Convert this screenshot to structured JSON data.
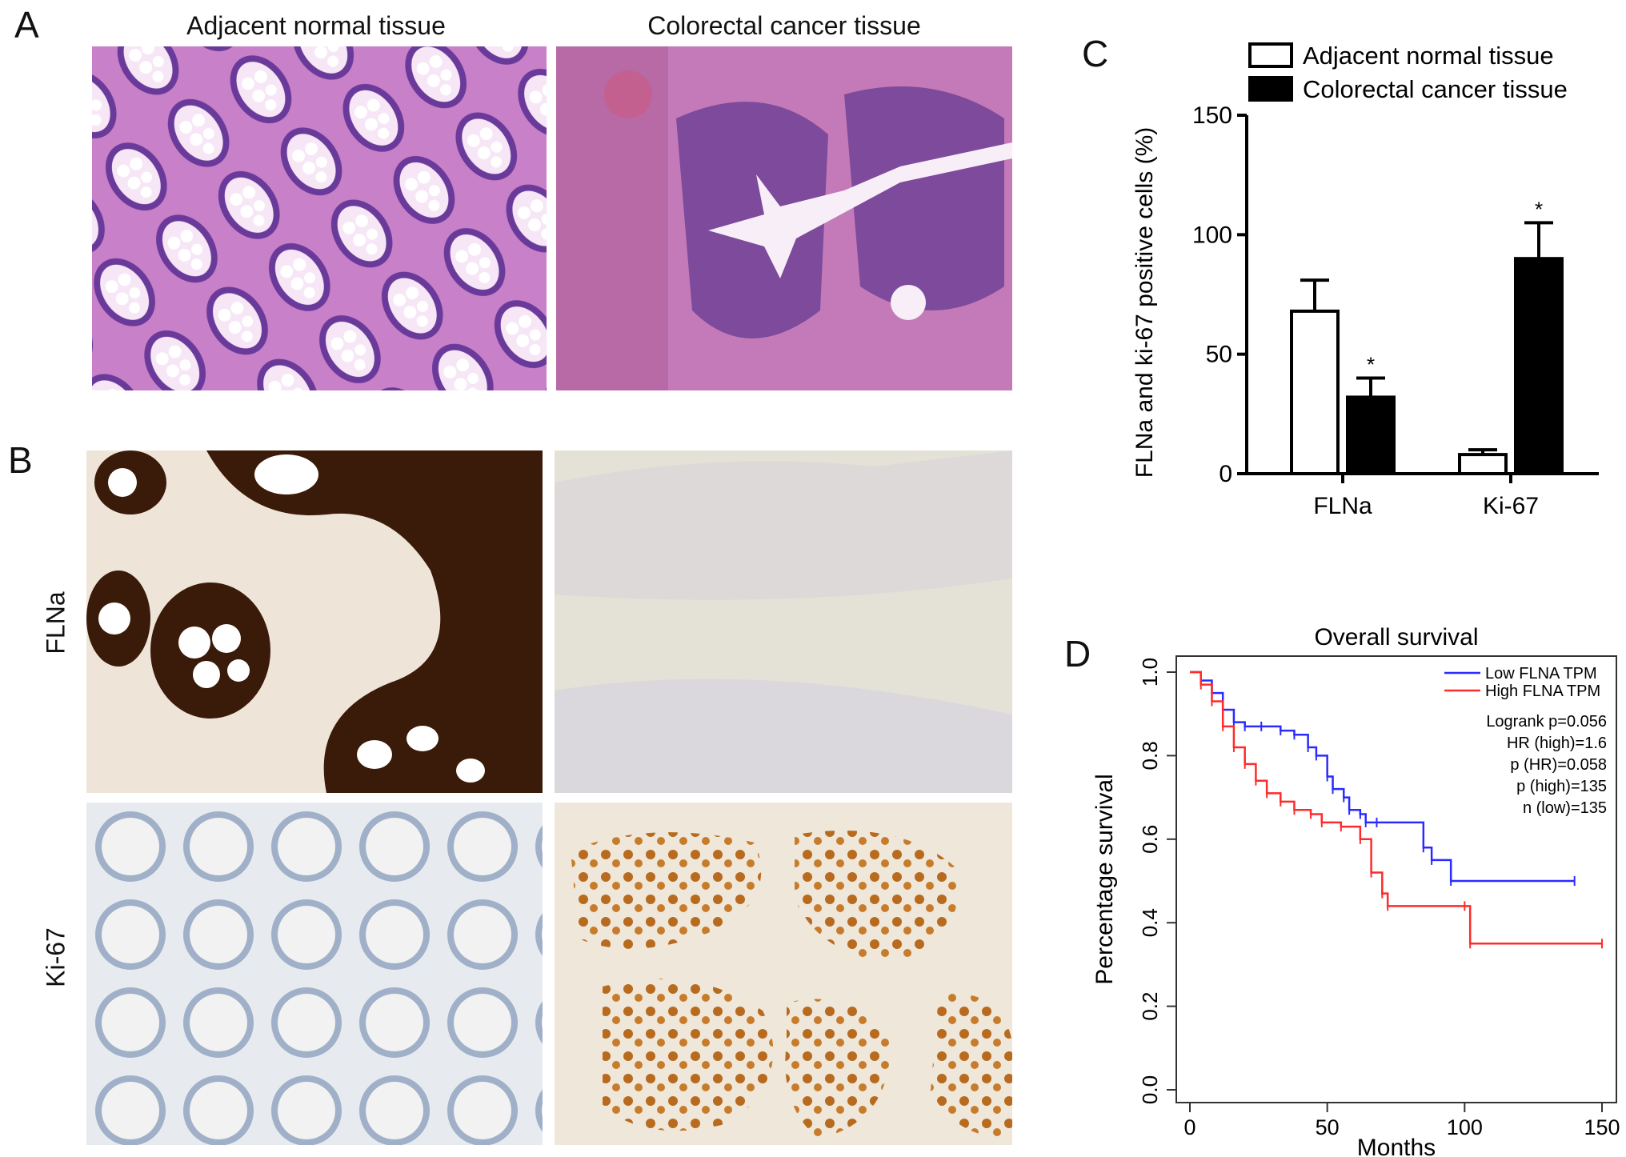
{
  "panels": {
    "A": {
      "letter": "A",
      "col_left": "Adjacent normal tissue",
      "col_right": "Colorectal cancer tissue"
    },
    "B": {
      "letter": "B",
      "row_top": "FLNa",
      "row_bottom": "Ki-67"
    },
    "C": {
      "letter": "C"
    },
    "D": {
      "letter": "D"
    }
  },
  "colors": {
    "he_bg": "#e8a8d8",
    "he_nuclei": "#5a2f8c",
    "ihc_dark": "#3a1a08",
    "ihc_light_bg": "#e4e1d6",
    "hema_blue": "#9fb0c8",
    "dab_brown": "#b86a1e",
    "km_low": "#2b2bff",
    "km_high": "#ff2b2b"
  },
  "chart_data": [
    {
      "type": "bar",
      "panel": "C",
      "categories": [
        "FLNa",
        "Ki-67"
      ],
      "series": [
        {
          "name": "Adjacent normal tissue",
          "fill": "#ffffff",
          "values": [
            68,
            8
          ],
          "errors": [
            13,
            2
          ]
        },
        {
          "name": "Colorectal cancer tissue",
          "fill": "#000000",
          "values": [
            32,
            90
          ],
          "errors": [
            8,
            15
          ]
        }
      ],
      "significance": [
        [
          "",
          "*"
        ],
        [
          "",
          "*"
        ]
      ],
      "ylabel": "FLNa and ki-67 positive cells (%)",
      "ylim": [
        0,
        150
      ],
      "yticks": [
        0,
        50,
        100,
        150
      ],
      "legend_position": "top"
    },
    {
      "type": "line",
      "panel": "D",
      "title": "Overall survival",
      "xlabel": "Months",
      "ylabel": "Percentage survival",
      "xlim": [
        0,
        150
      ],
      "ylim": [
        0,
        1.0
      ],
      "xticks": [
        0,
        50,
        100,
        150
      ],
      "yticks": [
        "0.0",
        "0.2",
        "0.4",
        "0.6",
        "0.8",
        "1.0"
      ],
      "series": [
        {
          "name": "Low FLNA TPM",
          "color": "#2b2bff",
          "x": [
            0,
            4,
            8,
            12,
            16,
            20,
            26,
            33,
            38,
            43,
            46,
            50,
            52,
            56,
            58,
            62,
            64,
            68,
            85,
            88,
            95,
            140
          ],
          "y": [
            1.0,
            0.98,
            0.95,
            0.91,
            0.88,
            0.87,
            0.87,
            0.86,
            0.85,
            0.82,
            0.8,
            0.75,
            0.72,
            0.7,
            0.67,
            0.66,
            0.64,
            0.64,
            0.58,
            0.55,
            0.5,
            0.5
          ]
        },
        {
          "name": "High FLNA TPM",
          "color": "#ff2b2b",
          "x": [
            0,
            4,
            8,
            12,
            16,
            20,
            24,
            28,
            33,
            38,
            44,
            48,
            55,
            62,
            66,
            70,
            72,
            100,
            102,
            150
          ],
          "y": [
            1.0,
            0.97,
            0.93,
            0.87,
            0.82,
            0.78,
            0.74,
            0.71,
            0.69,
            0.67,
            0.66,
            0.64,
            0.63,
            0.6,
            0.52,
            0.47,
            0.44,
            0.44,
            0.35,
            0.35
          ]
        }
      ],
      "annotations": [
        "Logrank p=0.056",
        "HR (high)=1.6",
        "p (HR)=0.058",
        "p (high)=135",
        "n (low)=135"
      ],
      "legend_position": "top-right"
    }
  ]
}
